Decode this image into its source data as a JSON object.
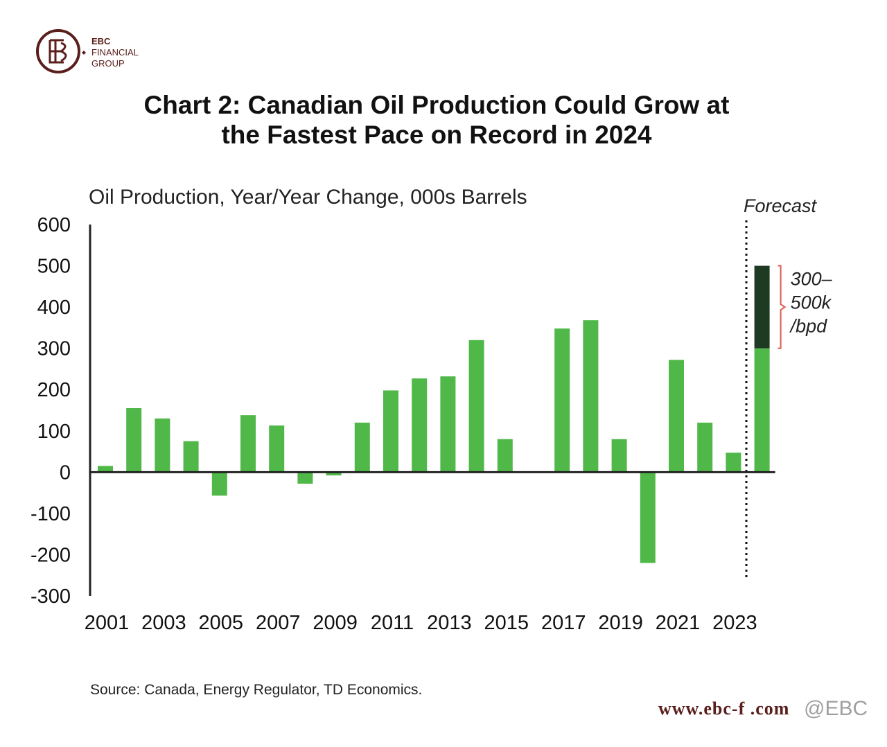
{
  "brand": {
    "name": "EBC",
    "line1": "FINANCIAL",
    "line2": "GROUP",
    "color": "#5a1f1c"
  },
  "title_line1": "Chart 2: Canadian Oil Production Could Grow at",
  "title_line2": "the Fastest Pace on Record in 2024",
  "source": "Source: Canada,  Energy Regulator, TD Economics.",
  "watermark": "www.ebc-f",
  "watermark_suffix": ".com",
  "watermark_brand": "@EBC",
  "chart_data": {
    "type": "bar",
    "title": "Chart 2: Canadian Oil Production Could Grow at the Fastest Pace on Record in 2024",
    "subtitle": "Oil Production, Year/Year Change, 000s Barrels",
    "ylabel": "Oil Production, Year/Year Change, 000s Barrels",
    "xlabel": "",
    "ylim": [
      -300,
      600
    ],
    "yticks": [
      600,
      500,
      400,
      300,
      200,
      100,
      0,
      -100,
      -200,
      -300
    ],
    "xtick_labels": [
      "2001",
      "2003",
      "2005",
      "2007",
      "2009",
      "2011",
      "2013",
      "2015",
      "2017",
      "2019",
      "2021",
      "2023"
    ],
    "categories": [
      "2001",
      "2002",
      "2003",
      "2004",
      "2005",
      "2006",
      "2007",
      "2008",
      "2009",
      "2010",
      "2011",
      "2012",
      "2013",
      "2014",
      "2015",
      "2016",
      "2017",
      "2018",
      "2019",
      "2020",
      "2021",
      "2022",
      "2023",
      "2024"
    ],
    "values": [
      15,
      155,
      130,
      75,
      -57,
      138,
      113,
      -28,
      -8,
      120,
      198,
      227,
      232,
      320,
      80,
      0,
      348,
      368,
      80,
      -220,
      272,
      120,
      47,
      300
    ],
    "forecast": {
      "label": "Forecast",
      "year": "2024",
      "range_low": 300,
      "range_high": 500,
      "range_label_lines": [
        "300–",
        "500k",
        "/bpd"
      ]
    },
    "colors": {
      "bar": "#4fb848",
      "forecast_top": "#1f3a22",
      "bracket": "#e05a4f",
      "axis": "#222222"
    }
  }
}
